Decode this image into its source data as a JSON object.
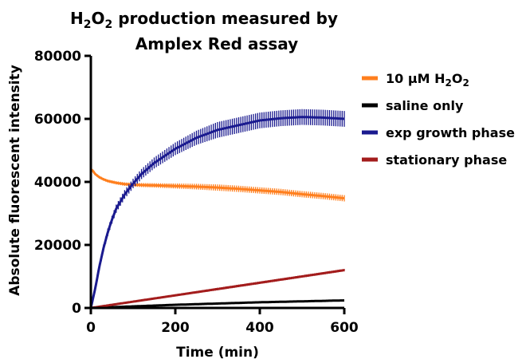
{
  "chart_data": {
    "type": "line",
    "title_line1": "production measured by",
    "title_formula": {
      "base": "H",
      "sub1": "2",
      "mid": "O",
      "sub2": "2"
    },
    "title_line2": "Amplex Red assay",
    "xlabel": "Time (min)",
    "ylabel": "Absolute fluorescent intensity",
    "xlim": [
      0,
      600
    ],
    "ylim": [
      0,
      80000
    ],
    "xticks": [
      0,
      200,
      400,
      600
    ],
    "yticks": [
      0,
      20000,
      40000,
      60000,
      80000
    ],
    "x_tick_labels": [
      "0",
      "200",
      "400",
      "600"
    ],
    "y_tick_labels": [
      "0",
      "20000",
      "40000",
      "60000",
      "80000"
    ],
    "grid": false,
    "legend_position": "right",
    "series": [
      {
        "name": "10 μM H2O2",
        "legend_parts": {
          "pre": "10 μM H",
          "sub1": "2",
          "mid": "O",
          "sub2": "2"
        },
        "color": "#ff7f1e",
        "x": [
          0,
          5,
          10,
          20,
          30,
          40,
          50,
          60,
          80,
          100,
          120,
          150,
          200,
          250,
          300,
          350,
          400,
          450,
          500,
          550,
          600
        ],
        "y": [
          44000,
          43500,
          42500,
          41500,
          40800,
          40300,
          40000,
          39700,
          39300,
          39100,
          39000,
          38900,
          38700,
          38500,
          38200,
          37800,
          37300,
          36800,
          36100,
          35500,
          34800
        ],
        "error": 1000
      },
      {
        "name": "saline only",
        "color": "#000000",
        "x": [
          0,
          100,
          200,
          300,
          400,
          500,
          600
        ],
        "y": [
          0,
          500,
          1000,
          1400,
          1800,
          2100,
          2400
        ],
        "error": 0
      },
      {
        "name": "exp growth phase",
        "color": "#1a1a8f",
        "x": [
          0,
          10,
          20,
          30,
          40,
          50,
          60,
          80,
          100,
          120,
          150,
          200,
          250,
          300,
          350,
          400,
          450,
          500,
          550,
          600
        ],
        "y": [
          0,
          6000,
          13000,
          19000,
          24000,
          28000,
          31500,
          36000,
          39500,
          42500,
          46000,
          50500,
          54000,
          56500,
          58000,
          59500,
          60200,
          60600,
          60400,
          60000
        ],
        "error": 2500
      },
      {
        "name": "stationary phase",
        "color": "#a31c1c",
        "x": [
          0,
          100,
          200,
          300,
          400,
          500,
          600
        ],
        "y": [
          0,
          2000,
          4000,
          6000,
          8000,
          10000,
          12000
        ],
        "error": 400
      }
    ]
  }
}
